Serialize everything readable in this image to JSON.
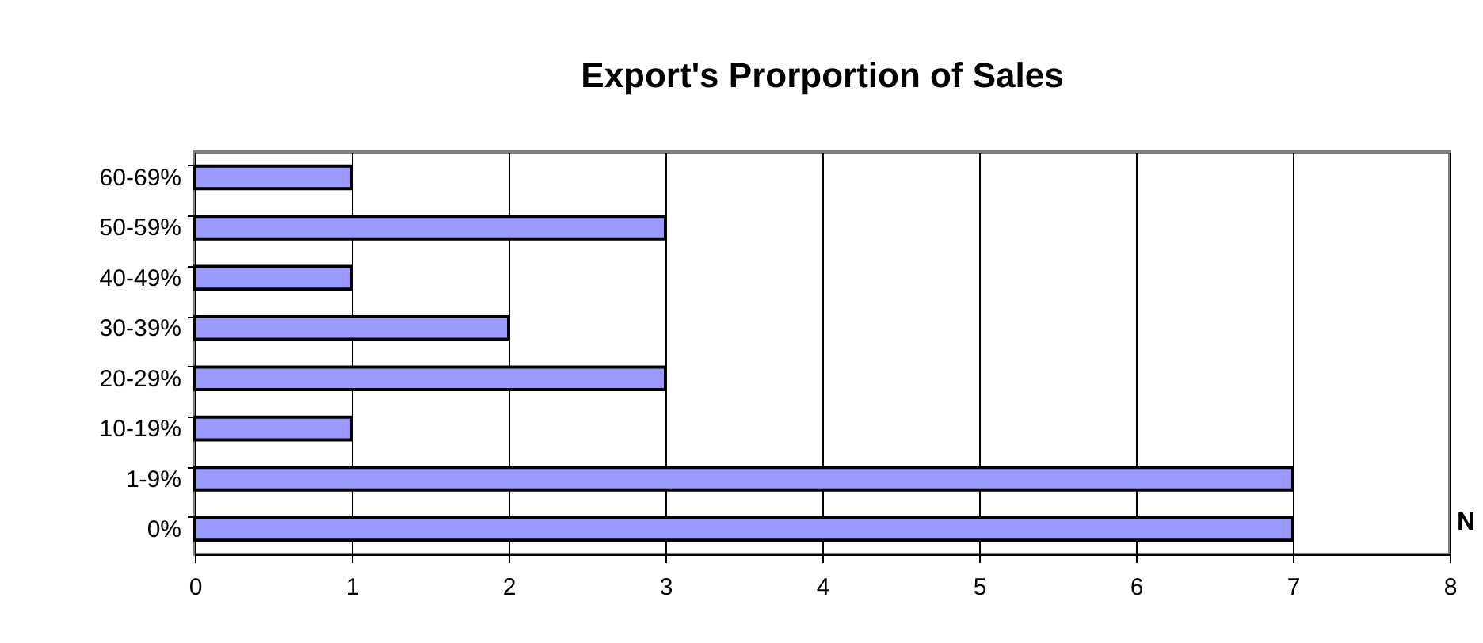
{
  "chart_data": {
    "type": "bar",
    "orientation": "horizontal",
    "title": "Export's Prorportion of Sales",
    "xlabel": "N",
    "categories": [
      "60-69%",
      "50-59%",
      "40-49%",
      "30-39%",
      "20-29%",
      "10-19%",
      "1-9%",
      "0%"
    ],
    "values": [
      1,
      3,
      1,
      2,
      3,
      1,
      7,
      7
    ],
    "color": "#9999ff",
    "xlim": [
      0,
      8
    ],
    "xticks": [
      0,
      1,
      2,
      3,
      4,
      5,
      6,
      7,
      8
    ],
    "grid": "x"
  }
}
